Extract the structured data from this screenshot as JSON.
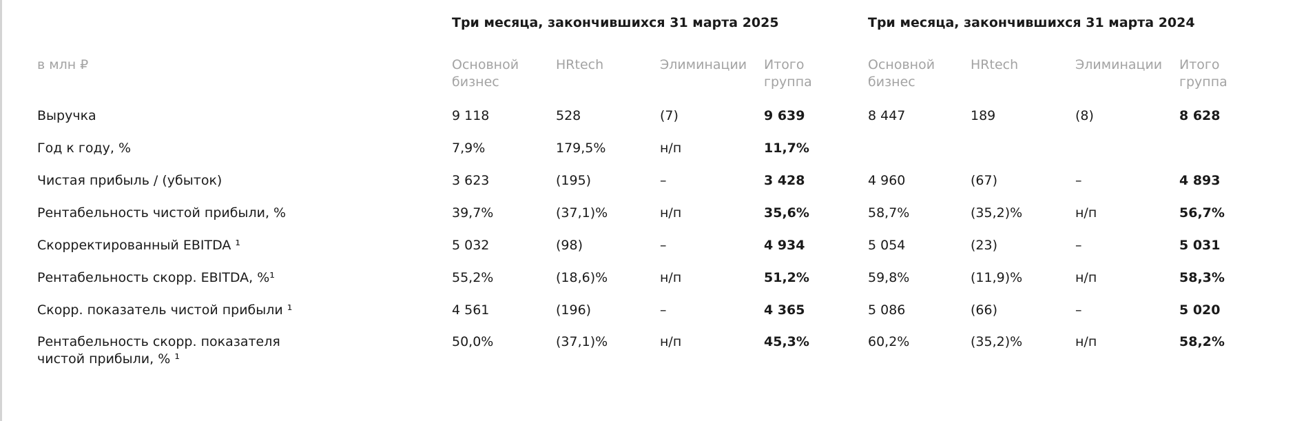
{
  "header": {
    "groups": [
      "Три месяца, закончившихся 31 марта 2025",
      "Три месяца, закончившихся 31 марта 2024"
    ],
    "unit": "в млн ₽",
    "columns": [
      "Основной бизнес",
      "HRtech",
      "Элиминации",
      "Итого группа",
      "Основной бизнес",
      "HRtech",
      "Элиминации",
      "Итого группа"
    ]
  },
  "table": {
    "rows": [
      [
        "Выручка",
        "9 118",
        "528",
        "(7)",
        "9 639",
        "8 447",
        "189",
        "(8)",
        "8 628"
      ],
      [
        "Год к году, %",
        "7,9%",
        "179,5%",
        "н/п",
        "11,7%",
        null,
        null,
        null,
        null
      ],
      [
        "Чистая прибыль / (убыток)",
        "3 623",
        "(195)",
        "–",
        "3 428",
        "4 960",
        "(67)",
        "–",
        "4 893"
      ],
      [
        "Рентабельность чистой прибыли, %",
        "39,7%",
        "(37,1)%",
        "н/п",
        "35,6%",
        "58,7%",
        "(35,2)%",
        "н/п",
        "56,7%"
      ],
      [
        "Скорректированный EBITDA ¹",
        "5 032",
        "(98)",
        "–",
        "4 934",
        "5 054",
        "(23)",
        "–",
        "5 031"
      ],
      [
        "Рентабельность скорр. EBITDA, %¹",
        "55,2%",
        "(18,6)%",
        "н/п",
        "51,2%",
        "59,8%",
        "(11,9)%",
        "н/п",
        "58,3%"
      ],
      [
        "Скорр. показатель чистой прибыли ¹",
        "4 561",
        "(196)",
        "–",
        "4 365",
        "5 086",
        "(66)",
        "–",
        "5 020"
      ],
      [
        "Рентабельность скорр. показателя чистой прибыли, % ¹",
        "50,0%",
        "(37,1)%",
        "н/п",
        "45,3%",
        "60,2%",
        "(35,2)%",
        "н/п",
        "58,2%"
      ]
    ]
  }
}
